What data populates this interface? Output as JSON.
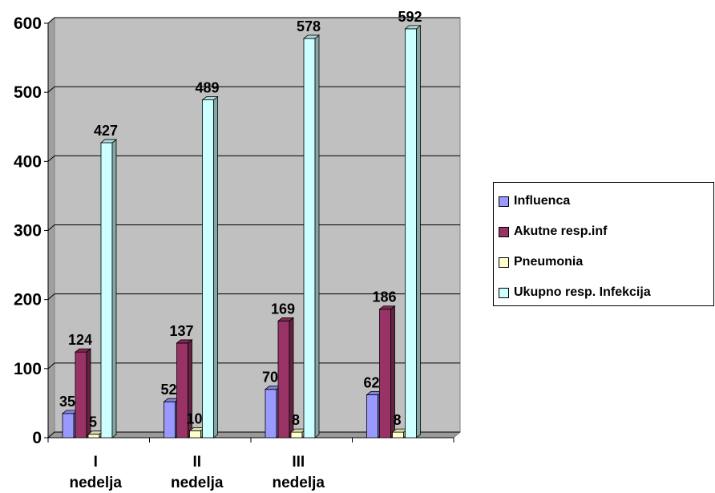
{
  "chart_data": {
    "type": "bar",
    "categories": [
      [
        "I",
        "nedelja"
      ],
      [
        "II",
        "nedelja"
      ],
      [
        "III",
        "nedelja"
      ],
      [
        "",
        ""
      ]
    ],
    "series": [
      {
        "name": "Influenca",
        "values": [
          35,
          52,
          70,
          62
        ],
        "color": "#9999ff",
        "label_color": "#000000"
      },
      {
        "name": "Akutne resp.inf",
        "values": [
          124,
          137,
          169,
          186
        ],
        "color": "#993366",
        "label_color": "#000000"
      },
      {
        "name": "Pneumonia",
        "values": [
          5,
          10,
          8,
          8
        ],
        "color": "#ffffcc",
        "label_color": "#000000"
      },
      {
        "name": "Ukupno resp. Infekcija",
        "values": [
          427,
          489,
          578,
          592
        ],
        "color": "#ccffff",
        "label_color": "#000000"
      }
    ],
    "ylim": [
      0,
      600
    ],
    "yticks": [
      0,
      100,
      200,
      300,
      400,
      500,
      600
    ],
    "grid": true,
    "plot_background": "#c0c0c0",
    "legend_position": "right"
  }
}
